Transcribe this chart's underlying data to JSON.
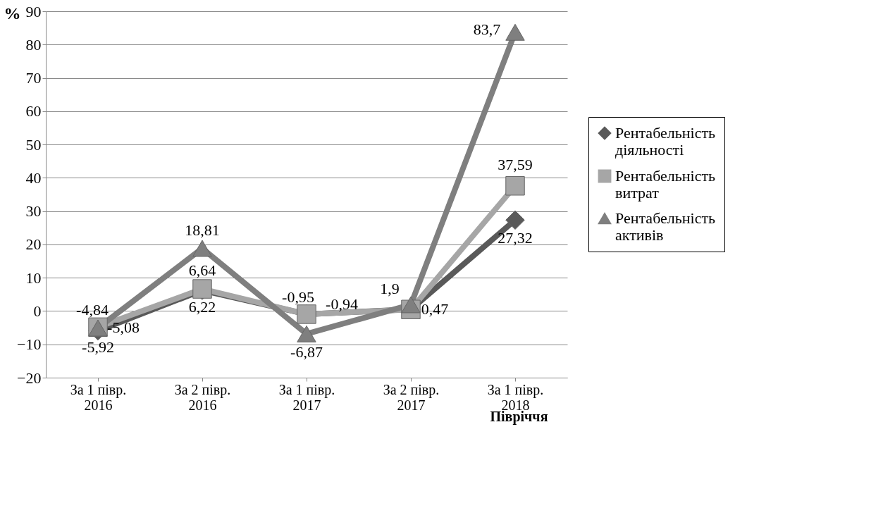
{
  "chart_data": {
    "type": "line",
    "ylabel": "%",
    "xlabel": "Півріччя",
    "categories": [
      "За 1 півр. 2016",
      "За 2 півр. 2016",
      "За 1 півр. 2017",
      "За 2 півр. 2017",
      "За 1 півр. 2018"
    ],
    "series": [
      {
        "name": "Рентабельність діяльності",
        "color": "#595959",
        "marker": "diamond",
        "values": [
          -5.92,
          6.22,
          -0.94,
          0.5,
          27.32
        ],
        "value_labels": [
          "-5,92",
          "6,22",
          "-0,94",
          null,
          "27,32"
        ]
      },
      {
        "name": "Рентабельність витрат",
        "color": "#a6a6a6",
        "marker": "square",
        "values": [
          -4.84,
          6.64,
          -0.95,
          0.47,
          37.59
        ],
        "value_labels": [
          "-4,84",
          "6,64",
          "-0,95",
          "0,47",
          "37,59"
        ]
      },
      {
        "name": "Рентабельність активів",
        "color": "#7f7f7f",
        "marker": "triangle",
        "values": [
          -5.08,
          18.81,
          -6.87,
          1.9,
          83.7
        ],
        "value_labels": [
          "-5,08",
          "18,81",
          "-6,87",
          "1,9",
          "83,7"
        ]
      }
    ],
    "ylim": [
      -20,
      90
    ],
    "yticks": [
      -20,
      -10,
      0,
      10,
      20,
      30,
      40,
      50,
      60,
      70,
      80,
      90
    ],
    "grid": "y",
    "legend": "right"
  }
}
